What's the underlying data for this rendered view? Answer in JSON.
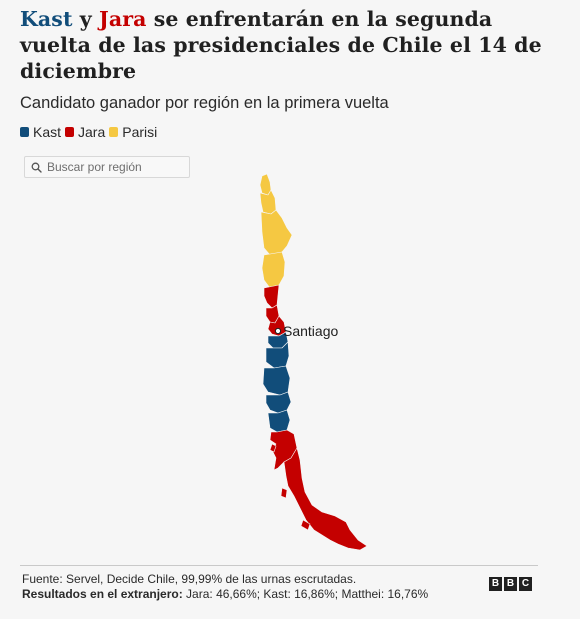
{
  "headline": {
    "kast": "Kast",
    "y": " y ",
    "jara": "Jara",
    "rest": " se enfrentarán en la segunda vuelta de las presidenciales de Chile el 14 de diciembre"
  },
  "subtitle": "Candidato ganador por región en la primera vuelta",
  "legend": [
    {
      "label": "Kast",
      "color": "#114d7a"
    },
    {
      "label": "Jara",
      "color": "#c40000"
    },
    {
      "label": "Parisi",
      "color": "#f5c842"
    }
  ],
  "search": {
    "placeholder": "Buscar por región",
    "icon": "search-icon"
  },
  "map": {
    "city_label": "Santiago",
    "regions": [
      {
        "winner": "Parisi"
      },
      {
        "winner": "Parisi"
      },
      {
        "winner": "Parisi"
      },
      {
        "winner": "Parisi"
      },
      {
        "winner": "Jara"
      },
      {
        "winner": "Jara"
      },
      {
        "winner": "Jara"
      },
      {
        "winner": "Kast"
      },
      {
        "winner": "Kast"
      },
      {
        "winner": "Kast"
      },
      {
        "winner": "Kast"
      },
      {
        "winner": "Kast"
      },
      {
        "winner": "Jara"
      },
      {
        "winner": "Jara"
      }
    ]
  },
  "footer": {
    "source": "Fuente: Servel, Decide Chile, 99,99% de las urnas escrutadas.",
    "results_label": "Resultados en el extranjero:",
    "results_text": " Jara: 46,66%; Kast: 16,86%; Matthei: 16,76%",
    "logo_letters": [
      "B",
      "B",
      "C"
    ]
  }
}
